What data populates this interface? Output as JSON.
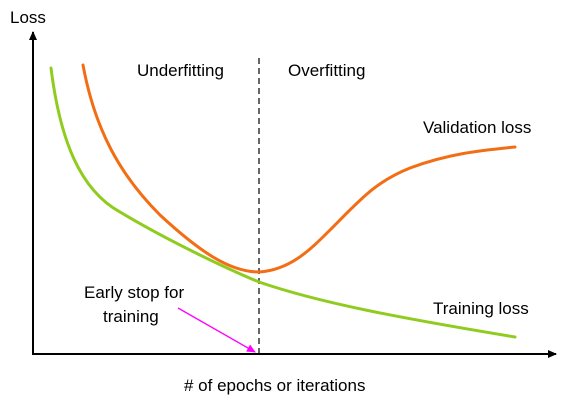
{
  "axes": {
    "y_label": "Loss",
    "x_label": "# of epochs or iterations"
  },
  "regions": {
    "left": "Underfitting",
    "right": "Overfitting"
  },
  "curves": {
    "validation": {
      "label": "Validation loss",
      "color": "#f26d14"
    },
    "training": {
      "label": "Training loss",
      "color": "#8fcc1f"
    }
  },
  "annotation": {
    "line1": "Early stop for",
    "line2": "training",
    "arrow_color": "#ff00ff"
  }
}
